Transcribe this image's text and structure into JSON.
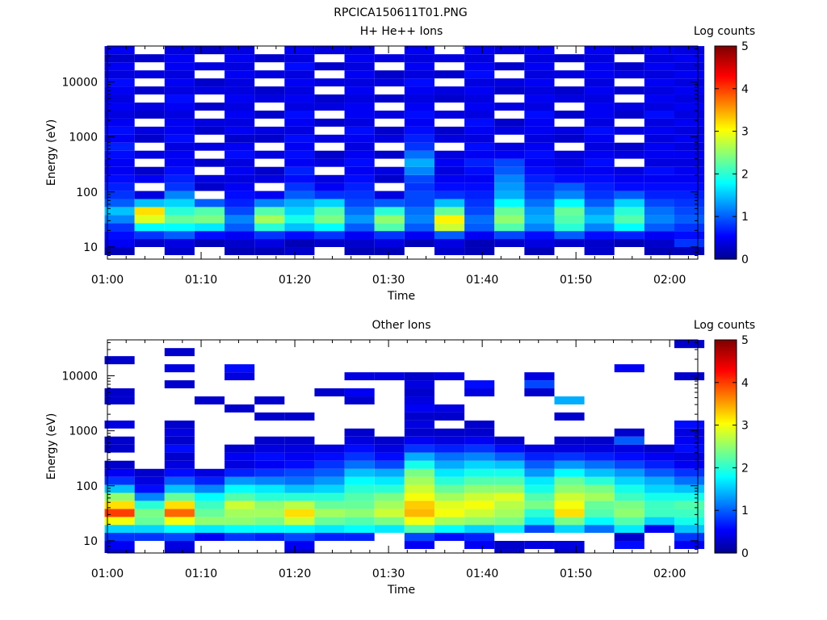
{
  "figure": {
    "title": "RPCICA150611T01.PNG"
  },
  "colors": {
    "colormap": [
      "#00008f",
      "#0000ff",
      "#00ffff",
      "#ffff00",
      "#ff0000",
      "#800000"
    ]
  },
  "chart_data": [
    {
      "type": "heatmap",
      "title": "H+ He++ Ions",
      "xlabel": "Time",
      "ylabel": "Energy (eV)",
      "yscale": "log",
      "ylim": [
        6,
        45000
      ],
      "xlim": [
        "01:00",
        "02:03"
      ],
      "xticks": [
        "01:00",
        "01:10",
        "01:20",
        "01:30",
        "01:40",
        "01:50",
        "02:00"
      ],
      "yticks": [
        "10",
        "100",
        "1000",
        "10000"
      ],
      "colorbar": {
        "label": "Log counts",
        "range": [
          0,
          5
        ],
        "ticks": [
          "0",
          "1",
          "2",
          "3",
          "4",
          "5"
        ]
      },
      "time_columns": [
        "01:01.3",
        "01:04.5",
        "01:07.7",
        "01:10.9",
        "01:14.1",
        "01:17.3",
        "01:20.5",
        "01:23.7",
        "01:26.9",
        "01:30.1",
        "01:33.3",
        "01:36.5",
        "01:39.7",
        "01:42.9",
        "01:46.1",
        "01:49.3",
        "01:52.5",
        "01:55.7",
        "01:58.9",
        "02:02.1"
      ],
      "energy_rows_eV": [
        6,
        8.4,
        11.8,
        16.5,
        23,
        32,
        45,
        63,
        88,
        123,
        172,
        240,
        340,
        475,
        665,
        930,
        1300,
        1820,
        2550,
        3560,
        5000,
        7000,
        9800,
        13700,
        19200,
        27000,
        37700
      ],
      "note_values": "log10 counts per cell, 0 = no counts",
      "values": [
        [
          0,
          0.2,
          0.5,
          0.6,
          0.8,
          1.2,
          1.5,
          1.0,
          0.8,
          0.7,
          0.6,
          0.5,
          0.5,
          0.6,
          0.7,
          0.5,
          0.6,
          0.5,
          0.4,
          0.5,
          0.4,
          0.5,
          0.6,
          0.4,
          0.5,
          0.3,
          0.5
        ],
        [
          0,
          0,
          0.3,
          0.8,
          1.8,
          2.9,
          3.2,
          1.5,
          0.4,
          0,
          0.5,
          0.3,
          0,
          0.4,
          0,
          0.3,
          0.4,
          0,
          0.3,
          0.4,
          0,
          0.3,
          0,
          0.4,
          0,
          0.3,
          0
        ],
        [
          0,
          0.3,
          0.4,
          1.0,
          1.8,
          2.3,
          2.0,
          1.6,
          1.2,
          0.8,
          0.7,
          0.6,
          0.5,
          0.5,
          0.4,
          0.6,
          0.5,
          0.5,
          0.4,
          0.5,
          0.6,
          0.4,
          0.5,
          0.4,
          0.5,
          0.5,
          0.4
        ],
        [
          0,
          0,
          0.2,
          0.6,
          1.7,
          2.4,
          2.2,
          1.0,
          0,
          0.3,
          0.4,
          0,
          0.3,
          0,
          0.4,
          0,
          0.3,
          0.4,
          0,
          0.3,
          0,
          0.4,
          0.3,
          0,
          0.4,
          0,
          0.3
        ],
        [
          0,
          0.2,
          0.3,
          0.5,
          1.0,
          1.2,
          0.9,
          0.7,
          0.6,
          0.5,
          0.4,
          0.5,
          0.4,
          0.6,
          0.5,
          0.3,
          0.5,
          0.4,
          0.5,
          0.4,
          0.5,
          0.4,
          0.4,
          0.5,
          0.4,
          0.5,
          0.4
        ],
        [
          0,
          0.2,
          0.4,
          0.8,
          2.0,
          2.6,
          2.2,
          1.2,
          0.5,
          0,
          0.4,
          0.3,
          0,
          0.4,
          0,
          0.3,
          0.4,
          0,
          0.3,
          0,
          0.4,
          0.3,
          0,
          0.4,
          0,
          0.3,
          0
        ],
        [
          0,
          0.3,
          0.2,
          0.6,
          1.5,
          1.9,
          1.6,
          1.4,
          1.0,
          0.8,
          0.6,
          0.7,
          0.5,
          0.6,
          0.5,
          0.6,
          0.4,
          0.5,
          0.6,
          0.4,
          0.5,
          0.4,
          0.5,
          0.4,
          0.6,
          0.4,
          0.5
        ],
        [
          0,
          0,
          0.3,
          0.8,
          1.8,
          2.4,
          2.2,
          1.6,
          0.8,
          0.5,
          0.4,
          0,
          0.4,
          0.3,
          0,
          0.4,
          0,
          0.3,
          0,
          0.4,
          0.3,
          0,
          0.4,
          0,
          0.3,
          0,
          0.4
        ],
        [
          0,
          0.2,
          0.3,
          0.5,
          1.0,
          1.3,
          1.1,
          0.9,
          0.8,
          0.7,
          0.6,
          0.5,
          0.6,
          0.5,
          0.4,
          0.5,
          0.6,
          0.4,
          0.5,
          0.5,
          0.4,
          0.5,
          0.4,
          0.5,
          0.4,
          0.5,
          0.4
        ],
        [
          0,
          0.2,
          0.4,
          0.8,
          2.2,
          2.5,
          2.0,
          1.0,
          0.4,
          0,
          0.3,
          0.4,
          0,
          0.3,
          0,
          0.4,
          0.3,
          0,
          0.4,
          0,
          0.3,
          0,
          0.4,
          0.3,
          0,
          0.4,
          0
        ],
        [
          0,
          0,
          0.2,
          0.5,
          1.0,
          1.2,
          1.1,
          0.9,
          0.9,
          0.8,
          0.9,
          1.2,
          1.4,
          1.1,
          0.8,
          0.7,
          0.6,
          0.5,
          0.6,
          0.5,
          0.4,
          0.5,
          0.6,
          0.4,
          0.5,
          0.4,
          0.5
        ],
        [
          0,
          0.3,
          0.4,
          1.0,
          2.8,
          3.1,
          2.3,
          1.5,
          0.8,
          0.6,
          0.5,
          0.4,
          0.5,
          0.4,
          0,
          0.4,
          0.3,
          0,
          0.4,
          0,
          0.3,
          0.4,
          0,
          0.3,
          0,
          0.4,
          0
        ],
        [
          0,
          0.2,
          0.2,
          0.5,
          1.0,
          1.1,
          0.9,
          0.8,
          0.7,
          0.6,
          0.5,
          0.6,
          0.7,
          0.5,
          0.6,
          0.4,
          0.5,
          0.6,
          0.4,
          0.5,
          0.4,
          0.5,
          0.4,
          0.6,
          0.5,
          0.4,
          0.5
        ],
        [
          0,
          0,
          0.3,
          0.9,
          2.2,
          2.5,
          2.3,
          1.8,
          1.4,
          1.3,
          1.2,
          1.0,
          0.9,
          0.5,
          0.4,
          0,
          0.4,
          0.3,
          0,
          0.4,
          0,
          0.3,
          0.4,
          0,
          0.3,
          0,
          0.4
        ],
        [
          0,
          0.2,
          0.4,
          0.6,
          1.2,
          1.4,
          1.3,
          1.1,
          0.9,
          0.8,
          0.7,
          0.6,
          0.5,
          0.6,
          0.5,
          0.4,
          0.5,
          0.5,
          0.6,
          0.4,
          0.5,
          0.4,
          0.5,
          0.4,
          0.5,
          0.4,
          0.5
        ],
        [
          0,
          0,
          0.3,
          1.0,
          2.0,
          2.2,
          2.3,
          1.8,
          1.2,
          1.0,
          0.6,
          0.5,
          0.4,
          0.4,
          0,
          0.3,
          0.4,
          0,
          0.3,
          0,
          0.4,
          0.3,
          0,
          0.4,
          0,
          0.3,
          0
        ],
        [
          0,
          0.3,
          0.3,
          0.6,
          1.2,
          1.5,
          1.3,
          1.0,
          0.8,
          0.7,
          0.6,
          0.5,
          0.6,
          0.5,
          0.4,
          0.5,
          0.6,
          0.4,
          0.5,
          0.5,
          0.4,
          0.5,
          0.4,
          0.5,
          0.5,
          0.4,
          0.5
        ],
        [
          0,
          0,
          0.2,
          0.7,
          1.8,
          2.2,
          2.0,
          1.6,
          1.0,
          0.6,
          0.5,
          0.4,
          0,
          0.4,
          0.3,
          0,
          0.4,
          0,
          0.3,
          0.4,
          0,
          0.3,
          0,
          0.4,
          0.3,
          0,
          0.3
        ],
        [
          0,
          0.2,
          0.3,
          0.5,
          1.0,
          1.2,
          1.1,
          0.9,
          0.7,
          0.6,
          0.5,
          0.6,
          0.4,
          0.5,
          0.5,
          0.4,
          0.5,
          0.4,
          0.6,
          0.4,
          0.5,
          0.4,
          0.5,
          0.4,
          0.5,
          0.4,
          0.5
        ],
        [
          0,
          0.2,
          0.8,
          0.6,
          0.8,
          1.0,
          0.9,
          0.8,
          0.7,
          0.6,
          0.5,
          0.5,
          0.4,
          0.5,
          0.4,
          0.5,
          0.4,
          0.5,
          0.4,
          0.5,
          0.4,
          0.5,
          0.4,
          0.5,
          0.4,
          0.5,
          0.4
        ]
      ]
    },
    {
      "type": "heatmap",
      "title": "Other Ions",
      "xlabel": "Time",
      "ylabel": "Energy (eV)",
      "yscale": "log",
      "ylim": [
        6,
        45000
      ],
      "xlim": [
        "01:00",
        "02:03"
      ],
      "xticks": [
        "01:00",
        "01:10",
        "01:20",
        "01:30",
        "01:40",
        "01:50",
        "02:00"
      ],
      "yticks": [
        "10",
        "100",
        "1000",
        "10000"
      ],
      "colorbar": {
        "label": "Log counts",
        "range": [
          0,
          5
        ],
        "ticks": [
          "0",
          "1",
          "2",
          "3",
          "4",
          "5"
        ]
      },
      "time_columns": [
        "01:01.3",
        "01:04.5",
        "01:07.7",
        "01:10.9",
        "01:14.1",
        "01:17.3",
        "01:20.5",
        "01:23.7",
        "01:26.9",
        "01:30.1",
        "01:33.3",
        "01:36.5",
        "01:39.7",
        "01:42.9",
        "01:46.1",
        "01:49.3",
        "01:52.5",
        "01:55.7",
        "01:58.9",
        "02:02.1"
      ],
      "energy_rows_eV": [
        6,
        8.4,
        11.8,
        16.5,
        23,
        32,
        45,
        63,
        88,
        123,
        172,
        240,
        340,
        475,
        665,
        930,
        1300,
        1820,
        2550,
        3560,
        5000,
        7000,
        9800,
        13700,
        19200,
        27000,
        37700
      ],
      "note_values": "log10 counts per cell, 0 = no counts",
      "values": [
        [
          0.3,
          0.5,
          0.8,
          1.6,
          3.0,
          4.0,
          3.2,
          2.5,
          1.5,
          0.8,
          0.5,
          0.3,
          0,
          0.3,
          0.3,
          0,
          0.4,
          0,
          0,
          0.3,
          0.3,
          0,
          0,
          0,
          0.3,
          0,
          0
        ],
        [
          0,
          0,
          0.8,
          1.6,
          2.3,
          2.4,
          2.0,
          1.2,
          0.6,
          0.4,
          0.3,
          0,
          0,
          0,
          0,
          0,
          0,
          0,
          0,
          0,
          0,
          0,
          0,
          0,
          0,
          0,
          0
        ],
        [
          0.3,
          0.4,
          0.9,
          1.8,
          3.0,
          3.8,
          3.2,
          2.3,
          1.5,
          1.0,
          0.6,
          0.4,
          0.3,
          0.6,
          0.3,
          0.4,
          0.3,
          0,
          0,
          0,
          0,
          0.3,
          0,
          0.4,
          0,
          0.3,
          0
        ],
        [
          0,
          0,
          0.5,
          1.7,
          2.5,
          2.3,
          2.1,
          1.8,
          1.2,
          0.7,
          0.4,
          0,
          0,
          0,
          0,
          0,
          0,
          0,
          0,
          0.3,
          0,
          0,
          0,
          0,
          0,
          0,
          0
        ],
        [
          0,
          0,
          0.8,
          1.8,
          2.5,
          2.6,
          2.8,
          2.2,
          1.8,
          1.3,
          0.7,
          0.4,
          0.5,
          0.3,
          0,
          0,
          0,
          0,
          0.3,
          0,
          0,
          0,
          0.4,
          0.6,
          0,
          0,
          0
        ],
        [
          0,
          0,
          0.7,
          1.8,
          2.4,
          2.6,
          2.5,
          2.0,
          1.7,
          1.2,
          0.8,
          0.5,
          0.6,
          0.4,
          0.3,
          0,
          0,
          0.3,
          0,
          0.3,
          0,
          0,
          0,
          0,
          0,
          0,
          0
        ],
        [
          0.3,
          0.5,
          0.9,
          1.8,
          2.8,
          3.2,
          2.7,
          2.0,
          1.5,
          1.1,
          0.9,
          0.6,
          0.5,
          0.4,
          0.3,
          0,
          0,
          0.3,
          0,
          0,
          0,
          0,
          0,
          0,
          0,
          0,
          0
        ],
        [
          0,
          0,
          0.7,
          1.7,
          2.3,
          2.6,
          2.3,
          2.0,
          1.6,
          1.3,
          1.0,
          0.8,
          0.6,
          0.4,
          0,
          0,
          0,
          0,
          0,
          0,
          0.3,
          0,
          0,
          0,
          0,
          0,
          0
        ],
        [
          0,
          0,
          0.7,
          1.8,
          2.2,
          2.5,
          2.3,
          2.2,
          2.0,
          1.8,
          1.5,
          1.1,
          0.8,
          0.6,
          0.4,
          0.3,
          0,
          0,
          0,
          0.3,
          0.5,
          0,
          0.4,
          0,
          0,
          0,
          0
        ],
        [
          0,
          0,
          0,
          1.7,
          2.4,
          2.8,
          2.6,
          2.4,
          2.0,
          1.7,
          1.4,
          0.9,
          0.6,
          0.4,
          0.3,
          0,
          0,
          0,
          0,
          0,
          0,
          0,
          0.4,
          0,
          0,
          0,
          0
        ],
        [
          0,
          0.5,
          0.9,
          2.2,
          3.0,
          3.4,
          3.3,
          3.0,
          2.8,
          2.6,
          2.4,
          1.9,
          1.4,
          0.8,
          0.5,
          0.3,
          0.4,
          0.3,
          0.5,
          0.4,
          0.3,
          0.4,
          0.3,
          0,
          0,
          0,
          0
        ],
        [
          0,
          0,
          0.6,
          1.8,
          2.6,
          3.0,
          2.9,
          2.6,
          2.3,
          2.0,
          1.7,
          1.4,
          1.1,
          0.7,
          0.4,
          0.3,
          0,
          0.3,
          0.4,
          0,
          0,
          0,
          0.4,
          0,
          0,
          0,
          0
        ],
        [
          0,
          0.5,
          0.7,
          1.6,
          2.5,
          2.8,
          3.0,
          2.8,
          2.5,
          2.2,
          1.9,
          1.6,
          1.2,
          0.8,
          0.5,
          0.3,
          0.3,
          0,
          0,
          0,
          0.4,
          0.6,
          0,
          0,
          0,
          0,
          0
        ],
        [
          0.3,
          0.3,
          0,
          1.7,
          2.4,
          2.6,
          2.7,
          2.9,
          2.5,
          2.2,
          1.9,
          1.5,
          1.0,
          0.6,
          0.3,
          0,
          0,
          0,
          0,
          0,
          0,
          0,
          0,
          0,
          0,
          0,
          0
        ],
        [
          0,
          0.4,
          0,
          0.9,
          1.7,
          2.0,
          2.4,
          2.2,
          1.9,
          1.7,
          1.3,
          1.0,
          0.7,
          0.4,
          0,
          0,
          0,
          0,
          0,
          0,
          0.3,
          0.9,
          0.4,
          0,
          0,
          0,
          0
        ],
        [
          0.3,
          0.4,
          0,
          1.6,
          2.4,
          3.2,
          3.0,
          2.8,
          2.5,
          2.3,
          1.8,
          1.3,
          0.8,
          0.4,
          0.3,
          0,
          0,
          0.3,
          0,
          1.4,
          0,
          0,
          0,
          0,
          0,
          0,
          0
        ],
        [
          0,
          0,
          0,
          1.1,
          1.8,
          2.2,
          2.3,
          2.6,
          2.4,
          2.0,
          1.5,
          1.1,
          0.7,
          0.4,
          0.3,
          0,
          0,
          0,
          0,
          0,
          0,
          0,
          0,
          0,
          0,
          0,
          0
        ],
        [
          0,
          0.6,
          0.3,
          1.7,
          2.2,
          2.5,
          2.4,
          2.1,
          1.9,
          1.6,
          1.3,
          0.9,
          0.6,
          0.4,
          1.0,
          0.3,
          0,
          0,
          0,
          0,
          0,
          0,
          0,
          0.5,
          0,
          0,
          0
        ],
        [
          0,
          0,
          0,
          0.5,
          1.6,
          2.1,
          2.1,
          1.9,
          1.6,
          1.4,
          1.0,
          0.7,
          0.5,
          0.3,
          0,
          0,
          0,
          0,
          0,
          0,
          0,
          0,
          0,
          0,
          0,
          0,
          0
        ],
        [
          0,
          0.5,
          0.8,
          1.5,
          1.9,
          2.1,
          2.2,
          1.9,
          1.5,
          1.1,
          0.8,
          0.5,
          0.4,
          0.6,
          0.5,
          0.4,
          0.6,
          0,
          0,
          0,
          0,
          0,
          0.3,
          0,
          0,
          0,
          0.3
        ]
      ]
    }
  ]
}
